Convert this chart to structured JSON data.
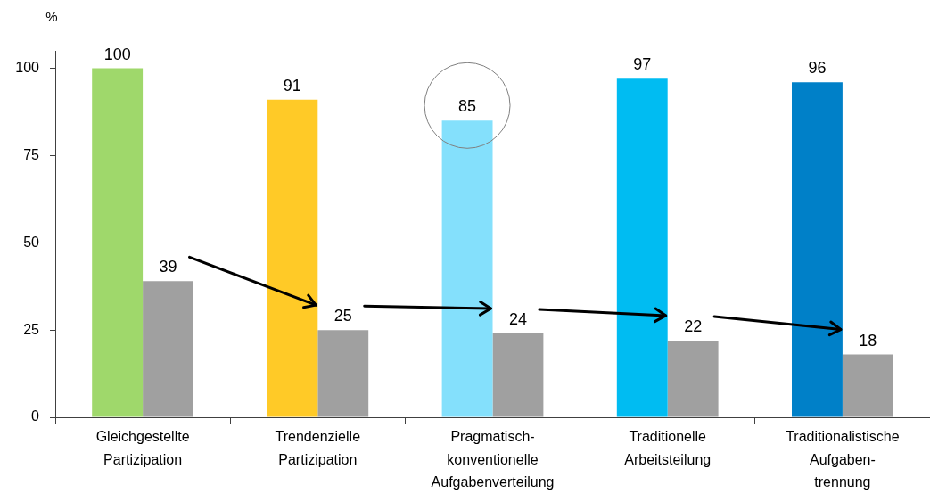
{
  "chart_data": {
    "type": "bar",
    "ylabel": "%",
    "categories": [
      "Gleichgestellte\nPartizipation",
      "Trendenzielle\nPartizipation",
      "Pragmatisch-\nkonventionelle\nAufgabenverteilung",
      "Traditionelle\nArbeitsteilung",
      "Traditionalistische\nAufgaben-\ntrennung"
    ],
    "series": [
      {
        "colors": [
          "#9fd86b",
          "#ffca27",
          "#84e0fc",
          "#00bcf2",
          "#0080c8"
        ],
        "values": [
          100,
          91,
          85,
          97,
          96
        ]
      },
      {
        "color": "#a0a0a0",
        "values": [
          39,
          25,
          24,
          22,
          18
        ]
      }
    ],
    "ylim": [
      0,
      105
    ],
    "yticks": [
      0,
      25,
      50,
      75,
      100
    ],
    "data_labels": true
  }
}
